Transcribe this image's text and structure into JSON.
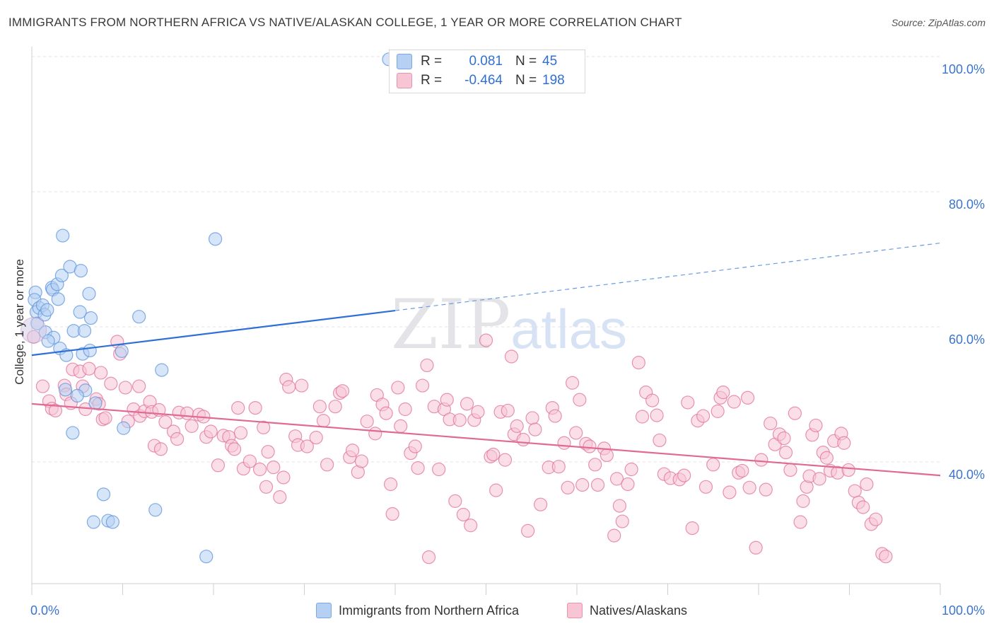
{
  "title": "IMMIGRANTS FROM NORTHERN AFRICA VS NATIVE/ALASKAN COLLEGE, 1 YEAR OR MORE CORRELATION CHART",
  "source": "Source: ZipAtlas.com",
  "watermark": "ZIPatlas",
  "legend_box": {
    "rows": [
      {
        "r_label": "R =",
        "r_value": "0.081",
        "n_label": "N =",
        "n_value": "45",
        "color": "#a8c8f0"
      },
      {
        "r_label": "R =",
        "r_value": "-0.464",
        "n_label": "N =",
        "n_value": "198",
        "color": "#f5b8cb"
      }
    ]
  },
  "legend_bottom": [
    {
      "label": "Immigrants from Northern Africa",
      "color": "#a8c8f0"
    },
    {
      "label": "Natives/Alaskans",
      "color": "#f5b8cb"
    }
  ],
  "chart_data": {
    "type": "scatter",
    "title": "IMMIGRANTS FROM NORTHERN AFRICA VS NATIVE/ALASKAN COLLEGE, 1 YEAR OR MORE CORRELATION CHART",
    "xlabel": "",
    "ylabel": "College, 1 year or more",
    "xlim": [
      0,
      100
    ],
    "ylim": [
      20,
      103
    ],
    "x_tick_labels": [
      "0.0%",
      "100.0%"
    ],
    "y_tick_labels": [
      "40.0%",
      "60.0%",
      "80.0%",
      "100.0%"
    ],
    "y_ticks": [
      40,
      60,
      80,
      100
    ],
    "grid": true,
    "legend_placement": "bottom",
    "series": [
      {
        "name": "Immigrants from Northern Africa",
        "color": "#5b93dd",
        "fill": "#b5d0f3",
        "points": [
          [
            0.4,
            65.1
          ],
          [
            0.3,
            64.0
          ],
          [
            0.5,
            62.2
          ],
          [
            0.6,
            60.5
          ],
          [
            0.8,
            62.8
          ],
          [
            1.2,
            63.2
          ],
          [
            1.4,
            61.8
          ],
          [
            1.7,
            62.5
          ],
          [
            2.2,
            65.8
          ],
          [
            2.3,
            65.5
          ],
          [
            2.8,
            66.3
          ],
          [
            2.9,
            64.1
          ],
          [
            3.3,
            67.6
          ],
          [
            3.4,
            73.5
          ],
          [
            4.2,
            68.9
          ],
          [
            5.4,
            68.3
          ],
          [
            6.3,
            64.9
          ],
          [
            5.3,
            62.2
          ],
          [
            6.5,
            61.3
          ],
          [
            4.6,
            59.4
          ],
          [
            5.8,
            59.4
          ],
          [
            1.5,
            59.2
          ],
          [
            2.4,
            58.4
          ],
          [
            1.8,
            57.9
          ],
          [
            3.1,
            56.8
          ],
          [
            3.8,
            55.8
          ],
          [
            5.6,
            56.0
          ],
          [
            6.4,
            56.5
          ],
          [
            9.9,
            56.4
          ],
          [
            11.8,
            61.5
          ],
          [
            20.2,
            73.0
          ],
          [
            14.3,
            53.6
          ],
          [
            3.7,
            50.7
          ],
          [
            5.9,
            50.6
          ],
          [
            5.0,
            49.8
          ],
          [
            7.0,
            48.7
          ],
          [
            10.1,
            45.0
          ],
          [
            4.5,
            44.3
          ],
          [
            7.9,
            35.2
          ],
          [
            6.8,
            31.1
          ],
          [
            8.4,
            31.3
          ],
          [
            8.9,
            31.1
          ],
          [
            13.6,
            32.9
          ],
          [
            19.2,
            26.0
          ],
          [
            39.3,
            99.6
          ]
        ],
        "trend": {
          "x": [
            0,
            40
          ],
          "y": [
            55.8,
            62.4
          ]
        },
        "trend_extension": {
          "x": [
            40,
            100
          ],
          "y": [
            62.4,
            72.4
          ]
        }
      },
      {
        "name": "Natives/Alaskans",
        "color": "#e07098",
        "fill": "#f8c5d5",
        "points": [
          [
            0.2,
            58.5
          ],
          [
            1.2,
            51.2
          ],
          [
            1.9,
            49.0
          ],
          [
            2.2,
            47.9
          ],
          [
            2.6,
            47.6
          ],
          [
            3.6,
            51.3
          ],
          [
            3.8,
            50.0
          ],
          [
            4.3,
            48.7
          ],
          [
            4.5,
            53.7
          ],
          [
            5.3,
            53.4
          ],
          [
            5.6,
            51.2
          ],
          [
            5.9,
            47.8
          ],
          [
            6.3,
            53.8
          ],
          [
            7.1,
            49.3
          ],
          [
            7.4,
            48.6
          ],
          [
            7.6,
            53.2
          ],
          [
            7.8,
            46.3
          ],
          [
            8.1,
            46.5
          ],
          [
            8.7,
            51.6
          ],
          [
            9.4,
            57.8
          ],
          [
            9.7,
            56.0
          ],
          [
            10.3,
            51.0
          ],
          [
            10.6,
            46.0
          ],
          [
            11.2,
            47.8
          ],
          [
            11.8,
            51.2
          ],
          [
            11.9,
            46.8
          ],
          [
            12.4,
            47.5
          ],
          [
            13.0,
            48.9
          ],
          [
            13.2,
            47.4
          ],
          [
            13.5,
            42.4
          ],
          [
            14.0,
            47.7
          ],
          [
            14.2,
            41.9
          ],
          [
            14.7,
            45.9
          ],
          [
            15.6,
            44.5
          ],
          [
            16.0,
            43.4
          ],
          [
            16.2,
            47.3
          ],
          [
            17.1,
            47.2
          ],
          [
            17.6,
            45.3
          ],
          [
            18.4,
            47.0
          ],
          [
            18.9,
            46.7
          ],
          [
            19.2,
            43.7
          ],
          [
            19.7,
            44.5
          ],
          [
            20.5,
            39.5
          ],
          [
            21.1,
            43.9
          ],
          [
            21.7,
            43.7
          ],
          [
            22.0,
            42.4
          ],
          [
            22.3,
            41.9
          ],
          [
            22.7,
            48.0
          ],
          [
            23.0,
            44.3
          ],
          [
            23.3,
            39.0
          ],
          [
            24.0,
            40.1
          ],
          [
            24.6,
            48.0
          ],
          [
            25.1,
            38.9
          ],
          [
            25.5,
            45.1
          ],
          [
            25.8,
            36.3
          ],
          [
            26.0,
            41.5
          ],
          [
            26.6,
            39.2
          ],
          [
            27.3,
            34.8
          ],
          [
            27.7,
            37.7
          ],
          [
            28.0,
            52.2
          ],
          [
            28.3,
            51.1
          ],
          [
            29.0,
            43.8
          ],
          [
            29.3,
            42.5
          ],
          [
            29.7,
            51.3
          ],
          [
            30.3,
            42.3
          ],
          [
            31.3,
            43.6
          ],
          [
            31.7,
            48.2
          ],
          [
            32.1,
            46.1
          ],
          [
            32.5,
            39.6
          ],
          [
            33.4,
            48.2
          ],
          [
            33.9,
            50.2
          ],
          [
            34.2,
            50.5
          ],
          [
            35.0,
            40.7
          ],
          [
            35.3,
            41.7
          ],
          [
            35.9,
            38.5
          ],
          [
            36.3,
            40.1
          ],
          [
            36.9,
            46.0
          ],
          [
            37.8,
            44.2
          ],
          [
            38.0,
            49.9
          ],
          [
            38.6,
            48.5
          ],
          [
            39.0,
            47.2
          ],
          [
            39.5,
            36.7
          ],
          [
            39.7,
            32.3
          ],
          [
            40.3,
            51.0
          ],
          [
            40.6,
            45.3
          ],
          [
            41.1,
            47.8
          ],
          [
            41.7,
            41.3
          ],
          [
            42.2,
            42.3
          ],
          [
            42.5,
            39.1
          ],
          [
            43.0,
            51.3
          ],
          [
            43.5,
            54.3
          ],
          [
            43.7,
            25.9
          ],
          [
            44.3,
            48.2
          ],
          [
            44.8,
            38.9
          ],
          [
            45.4,
            47.8
          ],
          [
            45.7,
            49.2
          ],
          [
            46.0,
            46.3
          ],
          [
            46.6,
            34.2
          ],
          [
            47.1,
            46.2
          ],
          [
            47.5,
            32.2
          ],
          [
            47.9,
            48.6
          ],
          [
            48.3,
            30.6
          ],
          [
            48.7,
            46.2
          ],
          [
            49.1,
            47.4
          ],
          [
            50.0,
            58.0
          ],
          [
            50.5,
            40.8
          ],
          [
            50.8,
            41.1
          ],
          [
            51.1,
            35.8
          ],
          [
            51.6,
            47.4
          ],
          [
            52.1,
            40.3
          ],
          [
            52.4,
            47.6
          ],
          [
            52.8,
            55.6
          ],
          [
            53.1,
            44.1
          ],
          [
            53.4,
            45.3
          ],
          [
            54.1,
            43.3
          ],
          [
            54.6,
            29.8
          ],
          [
            55.1,
            46.5
          ],
          [
            55.4,
            44.8
          ],
          [
            56.0,
            33.7
          ],
          [
            56.9,
            39.2
          ],
          [
            57.3,
            48.0
          ],
          [
            57.6,
            46.8
          ],
          [
            58.0,
            39.3
          ],
          [
            58.6,
            42.8
          ],
          [
            59.0,
            36.2
          ],
          [
            59.5,
            51.7
          ],
          [
            59.9,
            44.3
          ],
          [
            60.3,
            49.2
          ],
          [
            60.6,
            36.6
          ],
          [
            61.0,
            42.7
          ],
          [
            61.4,
            42.3
          ],
          [
            62.0,
            39.6
          ],
          [
            62.3,
            36.6
          ],
          [
            63.0,
            42.0
          ],
          [
            63.3,
            41.0
          ],
          [
            64.1,
            29.1
          ],
          [
            64.4,
            37.5
          ],
          [
            64.7,
            33.5
          ],
          [
            65.0,
            31.2
          ],
          [
            65.6,
            36.7
          ],
          [
            66.0,
            38.9
          ],
          [
            66.8,
            54.7
          ],
          [
            67.2,
            46.7
          ],
          [
            67.6,
            50.3
          ],
          [
            68.3,
            49.1
          ],
          [
            68.8,
            46.9
          ],
          [
            69.1,
            43.2
          ],
          [
            69.6,
            38.2
          ],
          [
            70.3,
            37.6
          ],
          [
            71.3,
            37.4
          ],
          [
            71.8,
            38.0
          ],
          [
            72.2,
            48.8
          ],
          [
            72.7,
            30.2
          ],
          [
            73.3,
            46.1
          ],
          [
            73.9,
            46.8
          ],
          [
            74.2,
            36.3
          ],
          [
            75.0,
            39.6
          ],
          [
            75.5,
            47.5
          ],
          [
            75.8,
            49.5
          ],
          [
            76.1,
            50.3
          ],
          [
            76.8,
            35.5
          ],
          [
            77.3,
            48.9
          ],
          [
            77.8,
            38.4
          ],
          [
            78.2,
            38.7
          ],
          [
            78.8,
            49.5
          ],
          [
            79.0,
            36.2
          ],
          [
            79.7,
            27.3
          ],
          [
            80.3,
            40.3
          ],
          [
            80.8,
            35.9
          ],
          [
            81.3,
            45.7
          ],
          [
            81.8,
            42.6
          ],
          [
            82.3,
            44.1
          ],
          [
            82.8,
            43.5
          ],
          [
            83.0,
            41.4
          ],
          [
            83.5,
            38.8
          ],
          [
            84.0,
            47.2
          ],
          [
            84.6,
            31.1
          ],
          [
            84.9,
            34.2
          ],
          [
            85.3,
            36.3
          ],
          [
            85.6,
            37.9
          ],
          [
            85.9,
            44.0
          ],
          [
            86.3,
            45.4
          ],
          [
            86.7,
            37.5
          ],
          [
            87.1,
            41.4
          ],
          [
            87.5,
            40.6
          ],
          [
            87.9,
            38.7
          ],
          [
            88.3,
            43.1
          ],
          [
            88.7,
            38.4
          ],
          [
            89.1,
            44.2
          ],
          [
            89.4,
            42.8
          ],
          [
            89.9,
            38.8
          ],
          [
            90.6,
            35.7
          ],
          [
            91.0,
            34.0
          ],
          [
            91.5,
            33.3
          ],
          [
            91.9,
            36.7
          ],
          [
            92.4,
            30.8
          ],
          [
            92.9,
            31.5
          ],
          [
            93.6,
            26.4
          ],
          [
            94.0,
            26.0
          ]
        ],
        "trend": {
          "x": [
            0,
            100
          ],
          "y": [
            48.6,
            38.0
          ]
        }
      }
    ]
  }
}
